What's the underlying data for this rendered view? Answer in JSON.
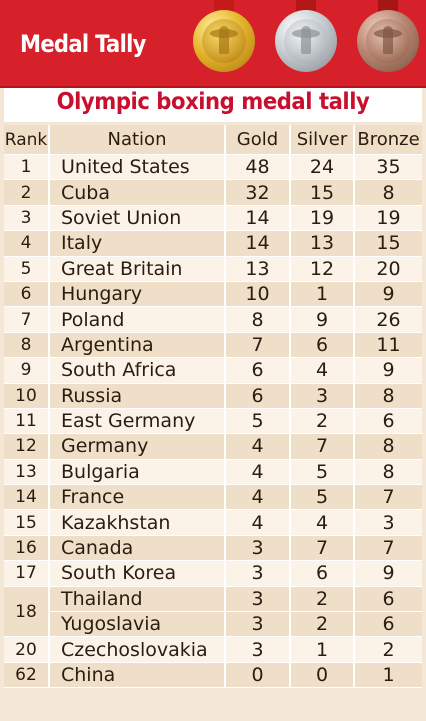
{
  "header": {
    "title": "Medal Tally"
  },
  "colors": {
    "header_red": "#d6202a",
    "title_red": "#c8102e",
    "row_dark": "#f0dfc8",
    "row_light": "#fbf3e8"
  },
  "chart_data": {
    "type": "table",
    "title": "Olympic boxing medal tally",
    "columns": [
      "Rank",
      "Nation",
      "Gold",
      "Silver",
      "Bronze"
    ],
    "rows": [
      {
        "rank": "1",
        "nation": "United States",
        "gold": 48,
        "silver": 24,
        "bronze": 35
      },
      {
        "rank": "2",
        "nation": "Cuba",
        "gold": 32,
        "silver": 15,
        "bronze": 8
      },
      {
        "rank": "3",
        "nation": "Soviet Union",
        "gold": 14,
        "silver": 19,
        "bronze": 19
      },
      {
        "rank": "4",
        "nation": "Italy",
        "gold": 14,
        "silver": 13,
        "bronze": 15
      },
      {
        "rank": "5",
        "nation": "Great Britain",
        "gold": 13,
        "silver": 12,
        "bronze": 20
      },
      {
        "rank": "6",
        "nation": "Hungary",
        "gold": 10,
        "silver": 1,
        "bronze": 9
      },
      {
        "rank": "7",
        "nation": "Poland",
        "gold": 8,
        "silver": 9,
        "bronze": 26
      },
      {
        "rank": "8",
        "nation": "Argentina",
        "gold": 7,
        "silver": 6,
        "bronze": 11
      },
      {
        "rank": "9",
        "nation": "South Africa",
        "gold": 6,
        "silver": 4,
        "bronze": 9
      },
      {
        "rank": "10",
        "nation": "Russia",
        "gold": 6,
        "silver": 3,
        "bronze": 8
      },
      {
        "rank": "11",
        "nation": "East Germany",
        "gold": 5,
        "silver": 2,
        "bronze": 6
      },
      {
        "rank": "12",
        "nation": "Germany",
        "gold": 4,
        "silver": 7,
        "bronze": 8
      },
      {
        "rank": "13",
        "nation": "Bulgaria",
        "gold": 4,
        "silver": 5,
        "bronze": 8
      },
      {
        "rank": "14",
        "nation": "France",
        "gold": 4,
        "silver": 5,
        "bronze": 7
      },
      {
        "rank": "15",
        "nation": "Kazakhstan",
        "gold": 4,
        "silver": 4,
        "bronze": 3
      },
      {
        "rank": "16",
        "nation": "Canada",
        "gold": 3,
        "silver": 7,
        "bronze": 7
      },
      {
        "rank": "17",
        "nation": "South Korea",
        "gold": 3,
        "silver": 6,
        "bronze": 9
      },
      {
        "rank": "18",
        "nation": "Thailand",
        "gold": 3,
        "silver": 2,
        "bronze": 6
      },
      {
        "rank": "18",
        "nation": "Yugoslavia",
        "gold": 3,
        "silver": 2,
        "bronze": 6
      },
      {
        "rank": "20",
        "nation": "Czechoslovakia",
        "gold": 3,
        "silver": 1,
        "bronze": 2
      },
      {
        "rank": "62",
        "nation": "China",
        "gold": 0,
        "silver": 0,
        "bronze": 1
      }
    ]
  }
}
